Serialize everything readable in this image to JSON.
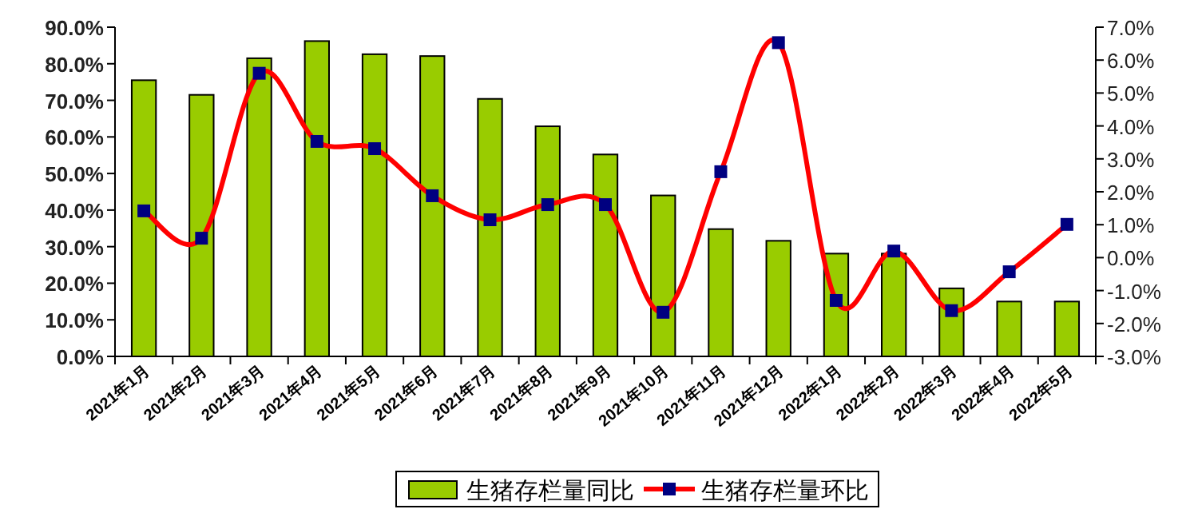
{
  "chart_data": {
    "type": "bar",
    "categories": [
      "2021年1月",
      "2021年2月",
      "2021年3月",
      "2021年4月",
      "2021年5月",
      "2021年6月",
      "2021年7月",
      "2021年8月",
      "2021年9月",
      "2021年10月",
      "2021年11月",
      "2021年12月",
      "2022年1月",
      "2022年2月",
      "2022年3月",
      "2022年4月",
      "2022年5月"
    ],
    "series": [
      {
        "name": "生猪存栏量同比",
        "color": "#99cc00",
        "values": [
          75.5,
          71.5,
          81.5,
          86.2,
          82.6,
          82.1,
          70.4,
          62.9,
          55.2,
          44.0,
          34.8,
          31.6,
          28.1,
          28.1,
          18.6,
          15.0,
          15.0
        ]
      },
      {
        "name": "生猪存栏量环比",
        "type": "line",
        "axis": "y2",
        "color": "#ff0000",
        "marker": "square",
        "values": [
          1.42,
          0.59,
          5.6,
          3.53,
          3.31,
          1.88,
          1.15,
          1.61,
          1.61,
          -1.66,
          2.61,
          6.53,
          -1.3,
          0.2,
          -1.61,
          -0.43,
          1.01
        ]
      }
    ],
    "ylim": [
      0,
      90
    ],
    "yticks": [
      {
        "value": 0,
        "label": "0.0%"
      },
      {
        "value": 10,
        "label": "10.0%"
      },
      {
        "value": 20,
        "label": "20.0%"
      },
      {
        "value": 30,
        "label": "30.0%"
      },
      {
        "value": 40,
        "label": "40.0%"
      },
      {
        "value": 50,
        "label": "50.0%"
      },
      {
        "value": 60,
        "label": "60.0%"
      },
      {
        "value": 70,
        "label": "70.0%"
      },
      {
        "value": 80,
        "label": "80.0%"
      },
      {
        "value": 90,
        "label": "90.0%"
      }
    ],
    "y2lim": [
      -3,
      7
    ],
    "y2ticks": [
      {
        "value": -3,
        "label": "-3.0%"
      },
      {
        "value": -2,
        "label": "-2.0%"
      },
      {
        "value": -1,
        "label": "-1.0%"
      },
      {
        "value": 0,
        "label": "0.0%"
      },
      {
        "value": 1,
        "label": "1.0%"
      },
      {
        "value": 2,
        "label": "2.0%"
      },
      {
        "value": 3,
        "label": "3.0%"
      },
      {
        "value": 4,
        "label": "4.0%"
      },
      {
        "value": 5,
        "label": "5.0%"
      },
      {
        "value": 6,
        "label": "6.0%"
      },
      {
        "value": 7,
        "label": "7.0%"
      }
    ],
    "legend": "bottom",
    "grid": false
  }
}
